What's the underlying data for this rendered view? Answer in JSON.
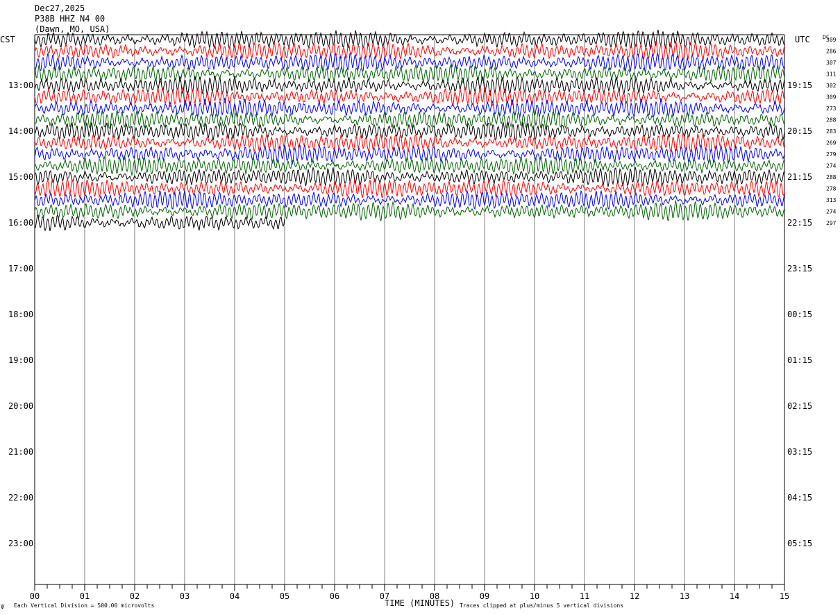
{
  "header": {
    "date": "Dec27,2025",
    "station": "P38B HHZ N4 00",
    "location": "(Dawn, MO, USA)"
  },
  "left_zone_label": "CST",
  "right_zone_label": "UTC",
  "dc_header": "DC",
  "footer": {
    "scale_note": "Each Vertical Division =  500.00 microvolts",
    "clip_note": "Traces clipped at plus/minus 5 vertical divisions",
    "corner_mark": "℣"
  },
  "chart_data": {
    "type": "line",
    "title": "",
    "xlabel": "TIME (MINUTES)",
    "ylabel": "",
    "x_ticks": [
      "00",
      "01",
      "02",
      "03",
      "04",
      "05",
      "06",
      "07",
      "08",
      "09",
      "10",
      "11",
      "12",
      "13",
      "14",
      "15"
    ],
    "xlim": [
      0,
      15
    ],
    "hour_labels_local": [
      "13:00",
      "14:00",
      "15:00",
      "16:00",
      "17:00",
      "18:00",
      "19:00",
      "20:00",
      "21:00",
      "22:00",
      "23:00"
    ],
    "hour_labels_utc": [
      "19:15",
      "20:15",
      "21:15",
      "22:15",
      "23:15",
      "00:15",
      "01:15",
      "02:15",
      "03:15",
      "04:15",
      "05:15"
    ],
    "trace_colors": [
      "#000000",
      "#ff0000",
      "#0000ff",
      "#006400"
    ],
    "dc_offsets": [
      309,
      286,
      307,
      311,
      302,
      309,
      273,
      288,
      283,
      269,
      279,
      274,
      288,
      278,
      313,
      274,
      297
    ],
    "traces_drawn": 17,
    "last_trace_end_minute": 5.0,
    "rows_per_hour": 4
  }
}
